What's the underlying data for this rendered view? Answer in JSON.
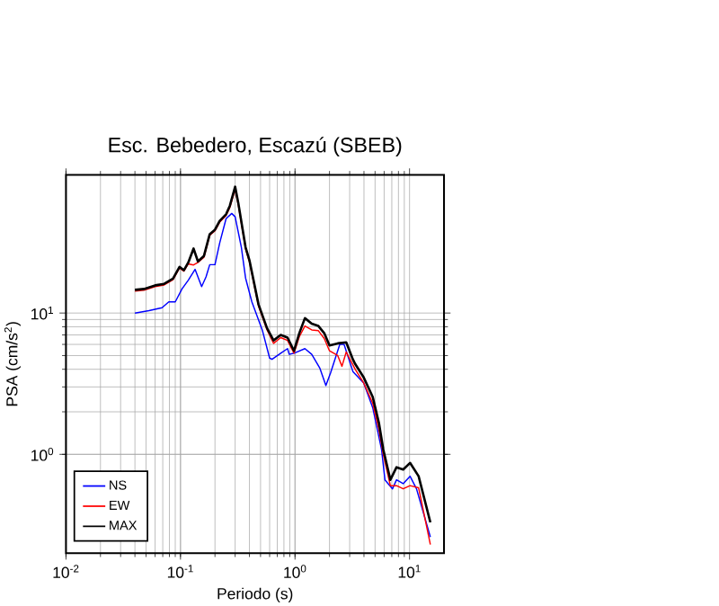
{
  "chart_data": {
    "type": "line",
    "title": "Esc. Bebedero, Escazú (SBEB)",
    "xlabel": "Periodo (s)",
    "ylabel": "PSA (cm/s$^{2}$)",
    "log": "xy",
    "grid": true,
    "legend": "bottom left",
    "marker": "none",
    "line_style": "solid",
    "xlim": [
      0.01,
      20
    ],
    "ylim": [
      0.2,
      95
    ],
    "xticks": [
      {
        "value": 0.01,
        "label": "10$^{-2}$"
      },
      {
        "value": 0.1,
        "label": "10$^{-1}$"
      },
      {
        "value": 1,
        "label": "10$^{0}$"
      },
      {
        "value": 10,
        "label": "10$^{1}$"
      }
    ],
    "yticks": [
      {
        "value": 1,
        "label": "10$^{0}$"
      },
      {
        "value": 10,
        "label": "10$^{1}$"
      }
    ],
    "series": [
      {
        "name": "NS",
        "color": "#0000ff",
        "x": [
          0.04,
          0.053,
          0.069,
          0.079,
          0.09,
          0.103,
          0.117,
          0.134,
          0.153,
          0.167,
          0.18,
          0.2,
          0.22,
          0.25,
          0.28,
          0.3,
          0.34,
          0.37,
          0.42,
          0.52,
          0.6,
          0.63,
          0.75,
          0.86,
          0.89,
          0.98,
          1.22,
          1.4,
          1.65,
          1.86,
          2.05,
          2.46,
          2.68,
          3.2,
          3.98,
          4.77,
          5.7,
          6.1,
          7.1,
          7.7,
          8.8,
          10.1,
          11.5,
          15.2
        ],
        "values": [
          10.0,
          10.4,
          10.9,
          12,
          12,
          14.8,
          17.1,
          20.4,
          15.4,
          18,
          22,
          22,
          31.4,
          46.5,
          50.7,
          48,
          29.2,
          17.7,
          12,
          7.5,
          4.8,
          4.7,
          5.2,
          5.6,
          5.1,
          5.2,
          5.6,
          5.1,
          4.06,
          3.07,
          3.8,
          6.0,
          6.0,
          3.86,
          3.2,
          2.14,
          1.08,
          0.66,
          0.57,
          0.66,
          0.62,
          0.7,
          0.57,
          0.26
        ]
      },
      {
        "name": "EW",
        "color": "#ff0000",
        "x": [
          0.04,
          0.048,
          0.06,
          0.072,
          0.086,
          0.098,
          0.107,
          0.117,
          0.13,
          0.142,
          0.16,
          0.18,
          0.2,
          0.22,
          0.25,
          0.27,
          0.3,
          0.32,
          0.37,
          0.4,
          0.48,
          0.57,
          0.65,
          0.75,
          0.86,
          0.98,
          1.09,
          1.22,
          1.4,
          1.6,
          1.8,
          2.0,
          2.36,
          2.57,
          2.8,
          3.35,
          3.98,
          4.77,
          5.4,
          5.9,
          6.8,
          7.7,
          8.8,
          10.1,
          12,
          15.2
        ],
        "values": [
          14.3,
          14.5,
          15.4,
          15.8,
          17.2,
          20.8,
          19.8,
          22.3,
          21.9,
          22.8,
          24.8,
          35.5,
          38.2,
          44,
          49,
          56,
          75,
          58,
          28.5,
          23,
          11.2,
          7.6,
          6.1,
          6.7,
          6.4,
          5.2,
          6.8,
          8.1,
          7.6,
          7.5,
          6.6,
          5.4,
          5.0,
          4.2,
          5.3,
          4.0,
          3.2,
          2.3,
          1.5,
          1.0,
          0.6,
          0.6,
          0.57,
          0.6,
          0.58,
          0.23
        ]
      },
      {
        "name": "MAX",
        "color": "#000000",
        "x": [
          0.04,
          0.048,
          0.06,
          0.072,
          0.086,
          0.098,
          0.107,
          0.117,
          0.13,
          0.142,
          0.16,
          0.18,
          0.2,
          0.22,
          0.25,
          0.27,
          0.3,
          0.32,
          0.37,
          0.4,
          0.48,
          0.57,
          0.65,
          0.75,
          0.86,
          0.98,
          1.09,
          1.22,
          1.4,
          1.6,
          1.8,
          2.0,
          2.36,
          2.8,
          3.2,
          3.35,
          3.98,
          4.77,
          5.4,
          5.9,
          6.8,
          7.7,
          8.8,
          10.1,
          12,
          15.2
        ],
        "values": [
          14.6,
          14.8,
          15.7,
          16.1,
          17.5,
          21.2,
          20.1,
          22.8,
          28.6,
          23.2,
          25.3,
          36.2,
          38.9,
          44.9,
          50,
          57.6,
          78.4,
          59.8,
          29.2,
          23.6,
          11.5,
          7.8,
          6.4,
          7.0,
          6.7,
          5.4,
          7.2,
          9.2,
          8.4,
          8.1,
          7.2,
          5.9,
          6.1,
          6.2,
          4.7,
          4.36,
          3.5,
          2.55,
          1.67,
          1.08,
          0.66,
          0.81,
          0.78,
          0.87,
          0.7,
          0.33
        ]
      }
    ]
  }
}
